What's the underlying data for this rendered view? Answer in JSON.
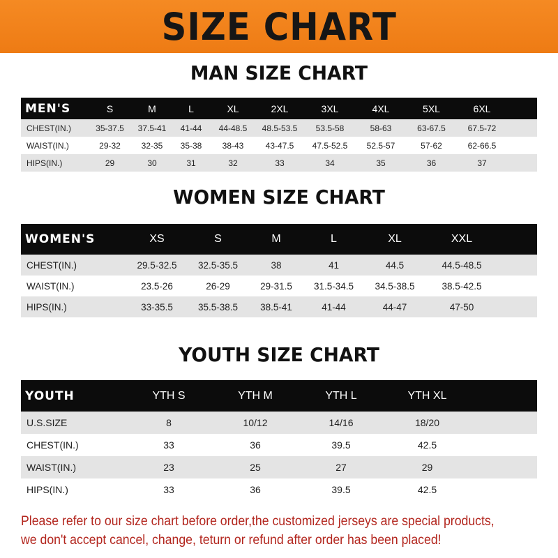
{
  "banner": {
    "title": "SIZE CHART",
    "color": "#f08019"
  },
  "men": {
    "title": "MAN SIZE CHART",
    "header": [
      "MEN'S",
      "S",
      "M",
      "L",
      "XL",
      "2XL",
      "3XL",
      "4XL",
      "5XL",
      "6XL"
    ],
    "rows": [
      [
        "CHEST(IN.)",
        "35-37.5",
        "37.5-41",
        "41-44",
        "44-48.5",
        "48.5-53.5",
        "53.5-58",
        "58-63",
        "63-67.5",
        "67.5-72"
      ],
      [
        "WAIST(IN.)",
        "29-32",
        "32-35",
        "35-38",
        "38-43",
        "43-47.5",
        "47.5-52.5",
        "52.5-57",
        "57-62",
        "62-66.5"
      ],
      [
        "HIPS(IN.)",
        "29",
        "30",
        "31",
        "32",
        "33",
        "34",
        "35",
        "36",
        "37"
      ]
    ]
  },
  "women": {
    "title": "WOMEN SIZE CHART",
    "header": [
      "WOMEN'S",
      "XS",
      "S",
      "M",
      "L",
      "XL",
      "XXL"
    ],
    "rows": [
      [
        "CHEST(IN.)",
        "29.5-32.5",
        "32.5-35.5",
        "38",
        "41",
        "44.5",
        "44.5-48.5"
      ],
      [
        "WAIST(IN.)",
        "23.5-26",
        "26-29",
        "29-31.5",
        "31.5-34.5",
        "34.5-38.5",
        "38.5-42.5"
      ],
      [
        "HIPS(IN.)",
        "33-35.5",
        "35.5-38.5",
        "38.5-41",
        "41-44",
        "44-47",
        "47-50"
      ]
    ]
  },
  "youth": {
    "title": "YOUTH SIZE CHART",
    "header": [
      "YOUTH",
      "YTH S",
      "YTH M",
      "YTH L",
      "YTH XL"
    ],
    "rows": [
      [
        "U.S.SIZE",
        "8",
        "10/12",
        "14/16",
        "18/20"
      ],
      [
        "CHEST(IN.)",
        "33",
        "36",
        "39.5",
        "42.5"
      ],
      [
        "WAIST(IN.)",
        "23",
        "25",
        "27",
        "29"
      ],
      [
        "HIPS(IN.)",
        "33",
        "36",
        "39.5",
        "42.5"
      ]
    ]
  },
  "note": {
    "line1": "Please refer to our size chart before order,the customized jerseys are special products,",
    "line2": "we don't accept cancel, change, teturn or refund after order has been placed!",
    "color": "#b3261e"
  }
}
